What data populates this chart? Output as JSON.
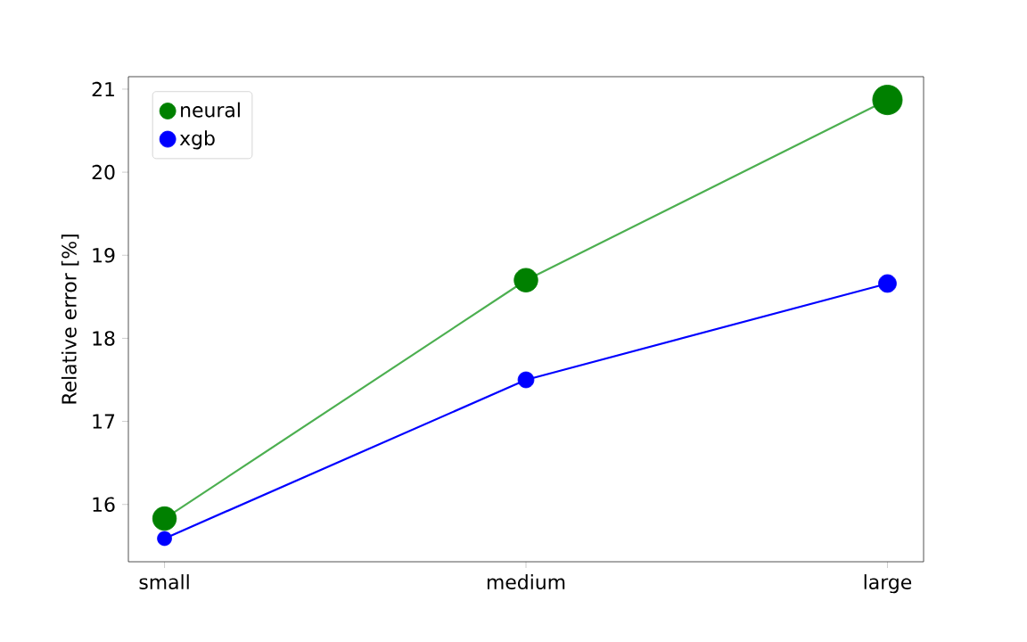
{
  "chart_data": {
    "type": "line",
    "ylabel": "Relative error [%]",
    "categories": [
      "small",
      "medium",
      "large"
    ],
    "ylim": [
      15.31,
      21.15
    ],
    "yticks": [
      16,
      17,
      18,
      19,
      20,
      21
    ],
    "grid": false,
    "legend": "top left",
    "series": [
      {
        "color": "#4caf50",
        "values": [
          15.83,
          18.7,
          20.87
        ]
      },
      {
        "color": "#0000ff",
        "values": [
          15.59,
          17.5,
          18.66
        ]
      },
      {
        "type": "bubble",
        "name": "neural",
        "color": "#008000",
        "values": [
          15.83,
          18.7,
          20.87
        ],
        "sizes": [
          0.64,
          0.64,
          1
        ]
      },
      {
        "type": "bubble",
        "name": "xgb",
        "color": "#0000ff",
        "values": [
          15.59,
          17.5,
          18.66
        ],
        "sizes": [
          0.23,
          0.29,
          0.36
        ]
      }
    ]
  }
}
